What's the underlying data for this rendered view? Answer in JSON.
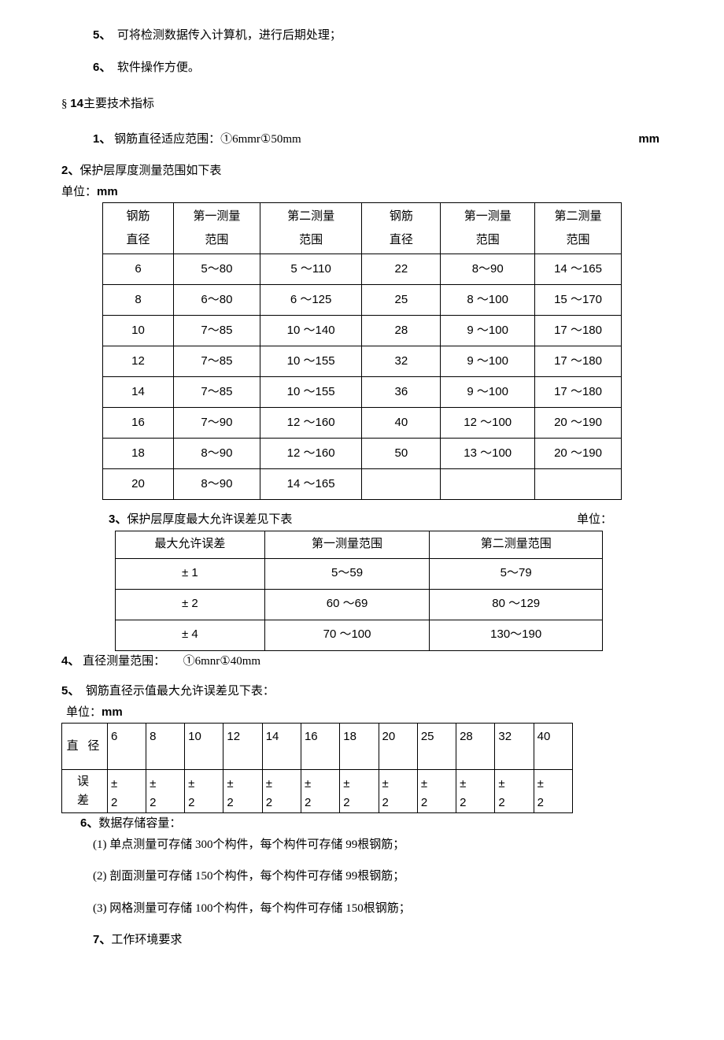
{
  "items_top": [
    {
      "num": "5、",
      "text": "　可将检测数据传入计算机，进行后期处理；"
    },
    {
      "num": "6、",
      "text": "　软件操作方便。"
    }
  ],
  "section14": {
    "prefix": "§ ",
    "num": "14",
    "title": "主要技术指标"
  },
  "line1": {
    "num": "1、",
    "text": "钢筋直径适应范围：①6mmr①50mm",
    "right": "mm"
  },
  "line2": {
    "num": "2、",
    "text": "保护层厚度测量范围如下表"
  },
  "unit_label": {
    "pre": "单位：",
    "mm": "mm"
  },
  "table1": {
    "headers": [
      "钢筋<br>直径",
      "第一测量<br>范围",
      "第二测量<br>范围",
      "钢筋<br>直径",
      "第一测量<br>范围",
      "第二测量<br>范围"
    ],
    "rows": [
      [
        "6",
        "5～80",
        "5 ～110",
        "22",
        "8～90",
        "14 ～165"
      ],
      [
        "8",
        "6～80",
        "6 ～125",
        "25",
        "8 ～100",
        "15 ～170"
      ],
      [
        "10",
        "7～85",
        "10 ～140",
        "28",
        "9 ～100",
        "17 ～180"
      ],
      [
        "12",
        "7～85",
        "10 ～155",
        "32",
        "9 ～100",
        "17 ～180"
      ],
      [
        "14",
        "7～85",
        "10 ～155",
        "36",
        "9 ～100",
        "17 ～180"
      ],
      [
        "16",
        "7～90",
        "12 ～160",
        "40",
        "12 ～100",
        "20 ～190"
      ],
      [
        "18",
        "8～90",
        "12 ～160",
        "50",
        "13 ～100",
        "20 ～190"
      ],
      [
        "20",
        "8～90",
        "14 ～165",
        "",
        "",
        ""
      ]
    ]
  },
  "line3": {
    "num": "3、",
    "text": "保护层厚度最大允许误差见下表",
    "right": "单位："
  },
  "table2": {
    "headers": [
      "最大允许误差",
      "第一测量范围",
      "第二测量范围"
    ],
    "rows": [
      [
        "± 1",
        "5～59",
        "5～79"
      ],
      [
        "± 2",
        "60 ～69",
        "80 ～129"
      ],
      [
        "± 4",
        "70 ～100",
        "130～190"
      ]
    ]
  },
  "line4": {
    "num": "4、",
    "text": "直径测量范围：　　①6mnr①40mm"
  },
  "line5": {
    "num": "5、",
    "text": "　钢筋直径示值最大允许误差见下表："
  },
  "table3": {
    "row_label_1": "直 径",
    "row_label_2": "误<br>差",
    "diameters": [
      "6",
      "8",
      "10",
      "12",
      "14",
      "16",
      "18",
      "20",
      "25",
      "28",
      "32",
      "40"
    ],
    "errors": [
      "±<br>2",
      "±<br>2",
      "±<br>2",
      "±<br>2",
      "±<br>2",
      "±<br>2",
      "±<br>2",
      "±<br>2",
      "±<br>2",
      "±<br>2",
      "±<br>2",
      "±<br>2"
    ]
  },
  "line6": {
    "num": "6、",
    "text": "数据存储容量："
  },
  "storage": [
    "(1) 单点测量可存储 300个构件，每个构件可存储 99根钢筋；",
    "(2) 剖面测量可存储 150个构件，每个构件可存储 99根钢筋；",
    "(3) 网格测量可存储 100个构件，每个构件可存储 150根钢筋；"
  ],
  "line7": {
    "num": "7、",
    "text": "工作环境要求"
  }
}
